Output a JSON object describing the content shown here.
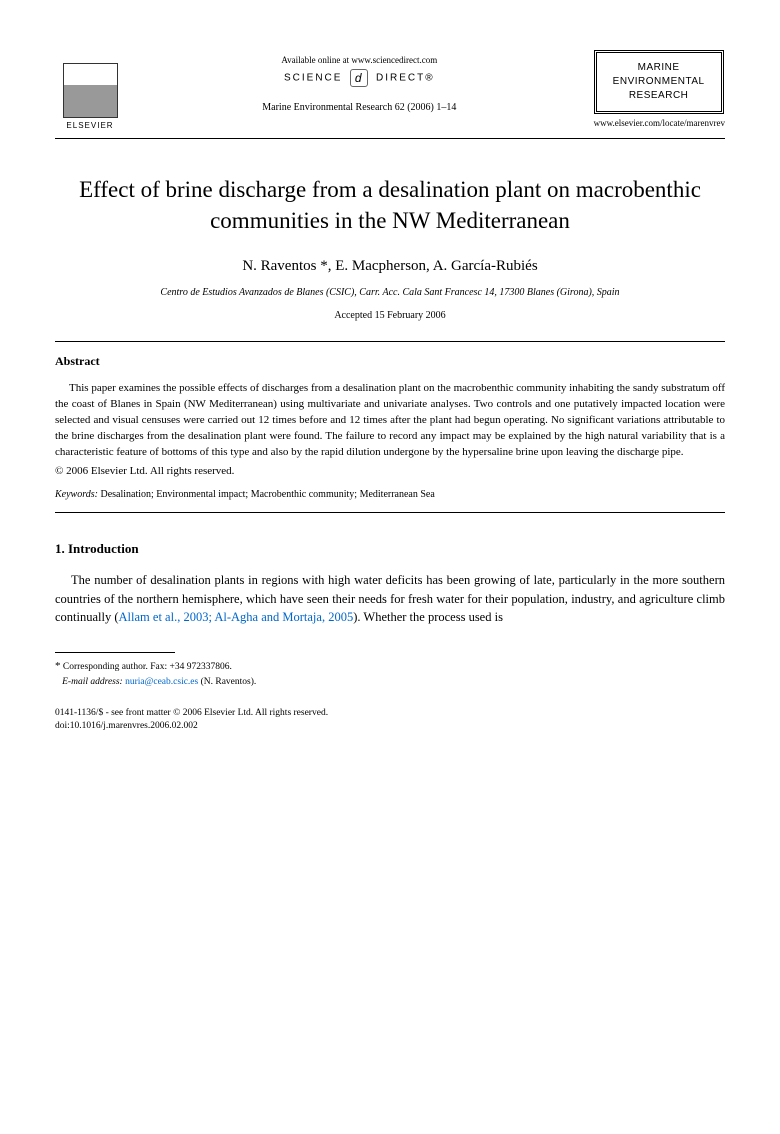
{
  "header": {
    "publisher_name": "ELSEVIER",
    "available_text": "Available online at www.sciencedirect.com",
    "science_label_left": "SCIENCE",
    "science_label_right": "DIRECT®",
    "science_logo_char": "d",
    "journal_reference": "Marine Environmental Research 62 (2006) 1–14",
    "journal_box_line1": "MARINE",
    "journal_box_line2": "ENVIRONMENTAL",
    "journal_box_line3": "RESEARCH",
    "journal_url": "www.elsevier.com/locate/marenvrev"
  },
  "article": {
    "title": "Effect of brine discharge from a desalination plant on macrobenthic communities in the NW Mediterranean",
    "authors": "N. Raventos *, E. Macpherson, A. García-Rubiés",
    "affiliation": "Centro de Estudios Avanzados de Blanes (CSIC), Carr. Acc. Cala Sant Francesc 14, 17300 Blanes (Girona), Spain",
    "accepted_date": "Accepted 15 February 2006"
  },
  "abstract": {
    "heading": "Abstract",
    "text": "This paper examines the possible effects of discharges from a desalination plant on the macrobenthic community inhabiting the sandy substratum off the coast of Blanes in Spain (NW Mediterranean) using multivariate and univariate analyses. Two controls and one putatively impacted location were selected and visual censuses were carried out 12 times before and 12 times after the plant had begun operating. No significant variations attributable to the brine discharges from the desalination plant were found. The failure to record any impact may be explained by the high natural variability that is a characteristic feature of bottoms of this type and also by the rapid dilution undergone by the hypersaline brine upon leaving the discharge pipe.",
    "copyright": "© 2006 Elsevier Ltd. All rights reserved."
  },
  "keywords": {
    "label": "Keywords:",
    "text": " Desalination; Environmental impact; Macrobenthic community; Mediterranean Sea"
  },
  "introduction": {
    "heading": "1. Introduction",
    "paragraph_part1": "The number of desalination plants in regions with high water deficits has been growing of late, particularly in the more southern countries of the northern hemisphere, which have seen their needs for fresh water for their population, industry, and agriculture climb continually (",
    "citation": "Allam et al., 2003; Al-Agha and Mortaja, 2005",
    "paragraph_part2": "). Whether the process used is"
  },
  "footnotes": {
    "corresponding_marker": "*",
    "corresponding_text": " Corresponding author. Fax: +34 972337806.",
    "email_label": "E-mail address:",
    "email": "nuria@ceab.csic.es",
    "email_attribution": " (N. Raventos)."
  },
  "footer": {
    "issn_line": "0141-1136/$ - see front matter © 2006 Elsevier Ltd. All rights reserved.",
    "doi_line": "doi:10.1016/j.marenvres.2006.02.002"
  },
  "colors": {
    "link_color": "#0066cc",
    "text_color": "#000000",
    "background_color": "#ffffff"
  }
}
